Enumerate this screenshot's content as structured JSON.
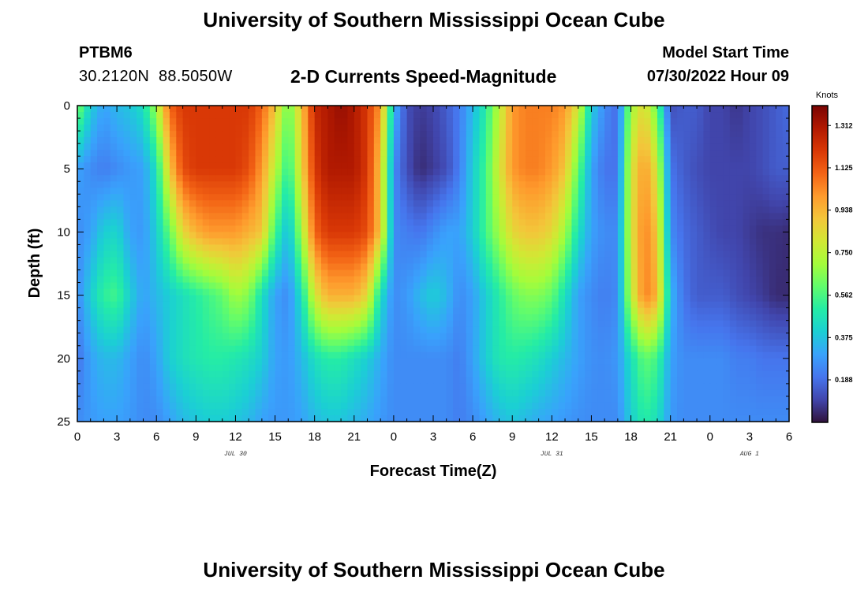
{
  "header": {
    "title": "University of Southern Mississippi Ocean Cube",
    "station_id": "PTBM6",
    "lat": "30.2120N",
    "lon": "88.5050W",
    "subtitle": "2-D Currents Speed-Magnitude",
    "model_start_label": "Model Start Time",
    "model_start_value": "07/30/2022 Hour 09"
  },
  "footer": {
    "title": "University of Southern Mississippi Ocean Cube"
  },
  "chart_data": {
    "type": "heatmap",
    "title": "2-D Currents Speed-Magnitude",
    "xlabel": "Forecast Time(Z)",
    "ylabel": "Depth (ft)",
    "x_hours_range": [
      0,
      54
    ],
    "x_tick_step_hours": 3,
    "x_tick_labels": [
      "0",
      "3",
      "6",
      "9",
      "12",
      "15",
      "18",
      "21",
      "0",
      "3",
      "6",
      "9",
      "12",
      "15",
      "18",
      "21",
      "0",
      "3",
      "6"
    ],
    "date_labels": [
      {
        "text": "JUL 30",
        "hour": 12
      },
      {
        "text": "JUL 31",
        "hour": 36
      },
      {
        "text": "AUG 1",
        "hour": 51
      }
    ],
    "y_range": [
      0,
      25
    ],
    "y_ticks": [
      0,
      5,
      10,
      15,
      20,
      25
    ],
    "colorbar": {
      "unit": "Knots",
      "min": 0.0,
      "max": 1.4,
      "ticks": [
        "1.312",
        "1.125",
        "0.938",
        "0.750",
        "0.562",
        "0.375",
        "0.188"
      ],
      "colors": [
        "#30123b",
        "#4145ab",
        "#4675ed",
        "#39a2fc",
        "#1bcfd4",
        "#24eca6",
        "#61fc6c",
        "#a4fc3b",
        "#d1e834",
        "#f3c63a",
        "#fe9b2d",
        "#f36315",
        "#d93806",
        "#b11901",
        "#7a0403"
      ]
    },
    "x_hours": [
      0,
      1,
      2,
      3,
      4,
      5,
      6,
      7,
      8,
      9,
      10,
      11,
      12,
      13,
      14,
      15,
      16,
      17,
      18,
      19,
      20,
      21,
      22,
      23,
      24,
      25,
      26,
      27,
      28,
      29,
      30,
      31,
      32,
      33,
      34,
      35,
      36,
      37,
      38,
      39,
      40,
      41,
      42,
      43,
      44,
      45,
      46,
      47,
      48,
      49,
      50,
      51,
      52,
      53,
      54
    ],
    "depths_ft": [
      0,
      5,
      10,
      15,
      20,
      25
    ],
    "speed_knots": [
      [
        0.65,
        0.4,
        0.3,
        0.35,
        0.38,
        0.45,
        0.7,
        1.1,
        1.2,
        1.2,
        1.2,
        1.2,
        1.2,
        1.2,
        1.1,
        0.9,
        0.6,
        0.9,
        1.25,
        1.3,
        1.35,
        1.3,
        1.2,
        1.0,
        0.35,
        0.12,
        0.08,
        0.1,
        0.15,
        0.22,
        0.35,
        0.5,
        0.75,
        1.0,
        1.05,
        1.05,
        1.05,
        1.0,
        0.8,
        0.4,
        0.25,
        0.18,
        0.7,
        0.85,
        0.6,
        0.12,
        0.15,
        0.15,
        0.1,
        0.1,
        0.07,
        0.1,
        0.12,
        0.15,
        0.18
      ],
      [
        0.3,
        0.25,
        0.22,
        0.25,
        0.28,
        0.3,
        0.45,
        0.9,
        1.15,
        1.2,
        1.2,
        1.2,
        1.2,
        1.15,
        1.0,
        0.75,
        0.5,
        0.85,
        1.2,
        1.3,
        1.3,
        1.3,
        1.2,
        0.9,
        0.25,
        0.12,
        0.05,
        0.08,
        0.12,
        0.22,
        0.4,
        0.55,
        0.8,
        1.0,
        1.05,
        1.05,
        1.0,
        0.9,
        0.6,
        0.3,
        0.2,
        0.2,
        0.8,
        1.0,
        0.8,
        0.2,
        0.15,
        0.12,
        0.1,
        0.1,
        0.1,
        0.1,
        0.12,
        0.15,
        0.15
      ],
      [
        0.25,
        0.3,
        0.4,
        0.42,
        0.3,
        0.28,
        0.4,
        0.6,
        0.85,
        0.95,
        1.0,
        1.0,
        1.0,
        0.95,
        0.9,
        0.55,
        0.35,
        0.7,
        1.1,
        1.2,
        1.2,
        1.2,
        1.15,
        0.9,
        0.25,
        0.22,
        0.2,
        0.25,
        0.3,
        0.3,
        0.4,
        0.55,
        0.7,
        0.85,
        0.9,
        0.9,
        0.85,
        0.7,
        0.45,
        0.3,
        0.25,
        0.25,
        0.8,
        1.05,
        0.9,
        0.25,
        0.18,
        0.15,
        0.12,
        0.1,
        0.1,
        0.08,
        0.06,
        0.06,
        0.05
      ],
      [
        0.25,
        0.4,
        0.52,
        0.55,
        0.4,
        0.3,
        0.35,
        0.4,
        0.45,
        0.5,
        0.55,
        0.6,
        0.7,
        0.65,
        0.45,
        0.3,
        0.25,
        0.45,
        0.8,
        0.95,
        0.95,
        0.95,
        0.85,
        0.45,
        0.25,
        0.28,
        0.35,
        0.4,
        0.35,
        0.25,
        0.3,
        0.4,
        0.5,
        0.6,
        0.65,
        0.65,
        0.6,
        0.45,
        0.3,
        0.25,
        0.22,
        0.25,
        0.75,
        1.05,
        0.95,
        0.35,
        0.2,
        0.15,
        0.15,
        0.15,
        0.12,
        0.1,
        0.08,
        0.05,
        0.05
      ],
      [
        0.2,
        0.3,
        0.35,
        0.35,
        0.3,
        0.25,
        0.3,
        0.4,
        0.45,
        0.48,
        0.5,
        0.5,
        0.48,
        0.45,
        0.4,
        0.3,
        0.28,
        0.35,
        0.45,
        0.5,
        0.5,
        0.45,
        0.4,
        0.32,
        0.25,
        0.25,
        0.25,
        0.25,
        0.25,
        0.22,
        0.3,
        0.4,
        0.48,
        0.5,
        0.48,
        0.45,
        0.4,
        0.35,
        0.3,
        0.26,
        0.25,
        0.28,
        0.45,
        0.6,
        0.55,
        0.3,
        0.25,
        0.25,
        0.25,
        0.25,
        0.22,
        0.22,
        0.2,
        0.2,
        0.2
      ],
      [
        0.25,
        0.28,
        0.3,
        0.3,
        0.28,
        0.25,
        0.25,
        0.3,
        0.35,
        0.38,
        0.4,
        0.4,
        0.38,
        0.35,
        0.3,
        0.28,
        0.28,
        0.3,
        0.35,
        0.38,
        0.38,
        0.35,
        0.32,
        0.28,
        0.25,
        0.25,
        0.25,
        0.25,
        0.25,
        0.22,
        0.25,
        0.3,
        0.35,
        0.38,
        0.35,
        0.32,
        0.3,
        0.28,
        0.26,
        0.25,
        0.25,
        0.25,
        0.4,
        0.5,
        0.45,
        0.28,
        0.25,
        0.25,
        0.25,
        0.25,
        0.25,
        0.25,
        0.25,
        0.25,
        0.25
      ]
    ]
  }
}
